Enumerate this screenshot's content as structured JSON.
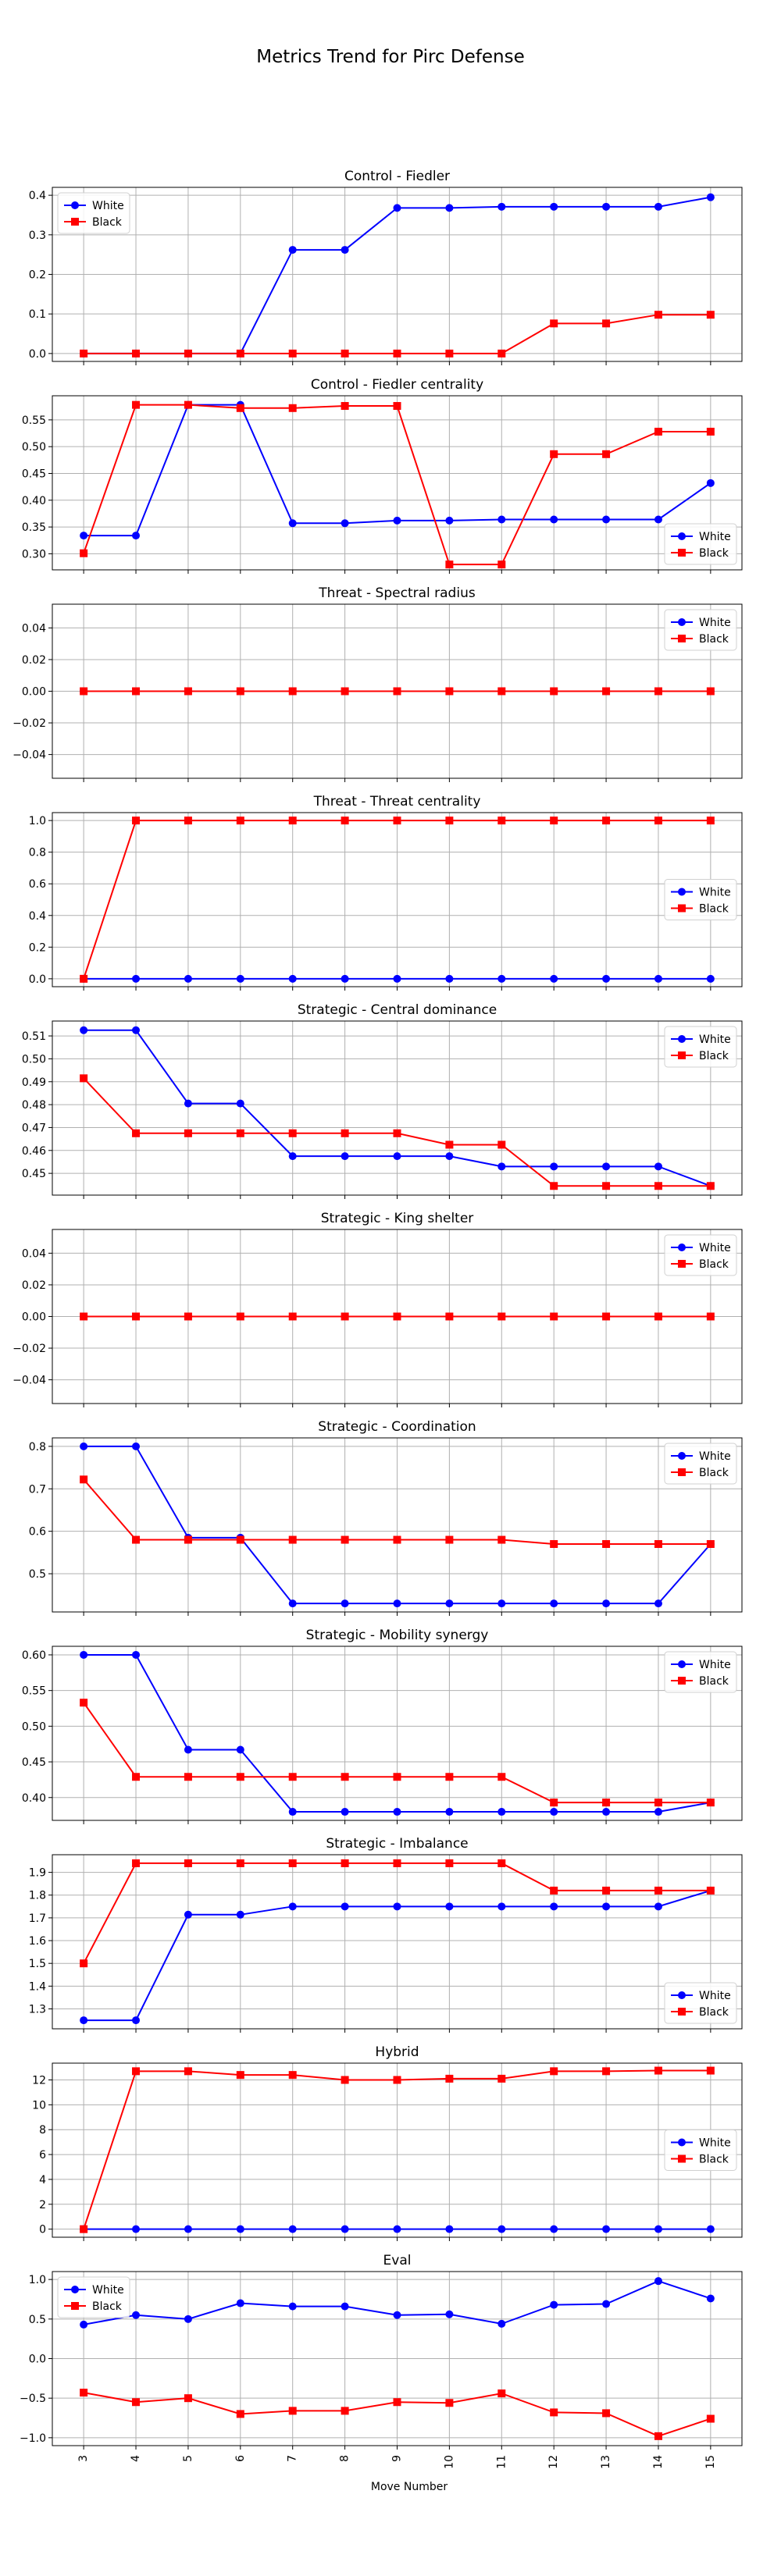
{
  "title": "Metrics Trend for Pirc Defense",
  "xlabel": "Move Number",
  "colors": {
    "White": "#0000ff",
    "Black": "#ff0000"
  },
  "chart_data": [
    {
      "type": "line",
      "title": "Control - Fiedler",
      "x": [
        3,
        4,
        5,
        6,
        7,
        8,
        9,
        10,
        11,
        12,
        13,
        14,
        15
      ],
      "ylim": [
        -0.02,
        0.42
      ],
      "yticks": [
        0.0,
        0.1,
        0.2,
        0.3,
        0.4
      ],
      "ytick_labels": [
        "0.0",
        "0.1",
        "0.2",
        "0.3",
        "0.4"
      ],
      "legend": "upper-left",
      "series": [
        {
          "name": "White",
          "marker": "circle",
          "values": [
            0,
            0,
            0,
            0,
            0.262,
            0.262,
            0.368,
            0.368,
            0.371,
            0.371,
            0.371,
            0.371,
            0.395
          ]
        },
        {
          "name": "Black",
          "marker": "square",
          "values": [
            0,
            0,
            0,
            0,
            0,
            0,
            0,
            0,
            0,
            0.076,
            0.076,
            0.098,
            0.098
          ]
        }
      ]
    },
    {
      "type": "line",
      "title": "Control - Fiedler centrality",
      "x": [
        3,
        4,
        5,
        6,
        7,
        8,
        9,
        10,
        11,
        12,
        13,
        14,
        15
      ],
      "ylim": [
        0.27,
        0.595
      ],
      "yticks": [
        0.3,
        0.35,
        0.4,
        0.45,
        0.5,
        0.55
      ],
      "ytick_labels": [
        "0.30",
        "0.35",
        "0.40",
        "0.45",
        "0.50",
        "0.55"
      ],
      "legend": "lower-right",
      "series": [
        {
          "name": "White",
          "marker": "circle",
          "values": [
            0.334,
            0.334,
            0.578,
            0.578,
            0.357,
            0.357,
            0.362,
            0.362,
            0.364,
            0.364,
            0.364,
            0.364,
            0.432
          ]
        },
        {
          "name": "Black",
          "marker": "square",
          "values": [
            0.301,
            0.578,
            0.578,
            0.572,
            0.572,
            0.576,
            0.576,
            0.28,
            0.28,
            0.486,
            0.486,
            0.528,
            0.528
          ]
        }
      ]
    },
    {
      "type": "line",
      "title": "Threat - Spectral radius",
      "x": [
        3,
        4,
        5,
        6,
        7,
        8,
        9,
        10,
        11,
        12,
        13,
        14,
        15
      ],
      "ylim": [
        -0.055,
        0.055
      ],
      "yticks": [
        -0.04,
        -0.02,
        0.0,
        0.02,
        0.04
      ],
      "ytick_labels": [
        "−0.04",
        "−0.02",
        "0.00",
        "0.02",
        "0.04"
      ],
      "legend": "upper-right",
      "series": [
        {
          "name": "White",
          "marker": "circle",
          "values": [
            0,
            0,
            0,
            0,
            0,
            0,
            0,
            0,
            0,
            0,
            0,
            0,
            0
          ]
        },
        {
          "name": "Black",
          "marker": "square",
          "values": [
            0,
            0,
            0,
            0,
            0,
            0,
            0,
            0,
            0,
            0,
            0,
            0,
            0
          ]
        }
      ]
    },
    {
      "type": "line",
      "title": "Threat - Threat centrality",
      "x": [
        3,
        4,
        5,
        6,
        7,
        8,
        9,
        10,
        11,
        12,
        13,
        14,
        15
      ],
      "ylim": [
        -0.05,
        1.05
      ],
      "yticks": [
        0.0,
        0.2,
        0.4,
        0.6,
        0.8,
        1.0
      ],
      "ytick_labels": [
        "0.0",
        "0.2",
        "0.4",
        "0.6",
        "0.8",
        "1.0"
      ],
      "legend": "center-right",
      "series": [
        {
          "name": "White",
          "marker": "circle",
          "values": [
            0,
            0,
            0,
            0,
            0,
            0,
            0,
            0,
            0,
            0,
            0,
            0,
            0
          ]
        },
        {
          "name": "Black",
          "marker": "square",
          "values": [
            0,
            1,
            1,
            1,
            1,
            1,
            1,
            1,
            1,
            1,
            1,
            1,
            1
          ]
        }
      ]
    },
    {
      "type": "line",
      "title": "Strategic - Central dominance",
      "x": [
        3,
        4,
        5,
        6,
        7,
        8,
        9,
        10,
        11,
        12,
        13,
        14,
        15
      ],
      "ylim": [
        0.4405,
        0.5165
      ],
      "yticks": [
        0.45,
        0.46,
        0.47,
        0.48,
        0.49,
        0.5,
        0.51
      ],
      "ytick_labels": [
        "0.45",
        "0.46",
        "0.47",
        "0.48",
        "0.49",
        "0.50",
        "0.51"
      ],
      "legend": "upper-right",
      "series": [
        {
          "name": "White",
          "marker": "circle",
          "values": [
            0.5125,
            0.5125,
            0.4805,
            0.4805,
            0.4575,
            0.4575,
            0.4575,
            0.4575,
            0.453,
            0.453,
            0.453,
            0.453,
            0.4445
          ]
        },
        {
          "name": "Black",
          "marker": "square",
          "values": [
            0.4915,
            0.4675,
            0.4675,
            0.4675,
            0.4675,
            0.4675,
            0.4675,
            0.4625,
            0.4625,
            0.4445,
            0.4445,
            0.4445,
            0.4445
          ]
        }
      ]
    },
    {
      "type": "line",
      "title": "Strategic - King shelter",
      "x": [
        3,
        4,
        5,
        6,
        7,
        8,
        9,
        10,
        11,
        12,
        13,
        14,
        15
      ],
      "ylim": [
        -0.055,
        0.055
      ],
      "yticks": [
        -0.04,
        -0.02,
        0.0,
        0.02,
        0.04
      ],
      "ytick_labels": [
        "−0.04",
        "−0.02",
        "0.00",
        "0.02",
        "0.04"
      ],
      "legend": "upper-right",
      "series": [
        {
          "name": "White",
          "marker": "circle",
          "values": [
            0,
            0,
            0,
            0,
            0,
            0,
            0,
            0,
            0,
            0,
            0,
            0,
            0
          ]
        },
        {
          "name": "Black",
          "marker": "square",
          "values": [
            0,
            0,
            0,
            0,
            0,
            0,
            0,
            0,
            0,
            0,
            0,
            0,
            0
          ]
        }
      ]
    },
    {
      "type": "line",
      "title": "Strategic - Coordination",
      "x": [
        3,
        4,
        5,
        6,
        7,
        8,
        9,
        10,
        11,
        12,
        13,
        14,
        15
      ],
      "ylim": [
        0.41,
        0.82
      ],
      "yticks": [
        0.5,
        0.6,
        0.7,
        0.8
      ],
      "ytick_labels": [
        "0.5",
        "0.6",
        "0.7",
        "0.8"
      ],
      "legend": "upper-right",
      "series": [
        {
          "name": "White",
          "marker": "circle",
          "values": [
            0.8,
            0.8,
            0.585,
            0.585,
            0.43,
            0.43,
            0.43,
            0.43,
            0.43,
            0.43,
            0.43,
            0.43,
            0.57
          ]
        },
        {
          "name": "Black",
          "marker": "square",
          "values": [
            0.722,
            0.58,
            0.58,
            0.58,
            0.58,
            0.58,
            0.58,
            0.58,
            0.58,
            0.57,
            0.57,
            0.57,
            0.57
          ]
        }
      ]
    },
    {
      "type": "line",
      "title": "Strategic - Mobility synergy",
      "x": [
        3,
        4,
        5,
        6,
        7,
        8,
        9,
        10,
        11,
        12,
        13,
        14,
        15
      ],
      "ylim": [
        0.368,
        0.612
      ],
      "yticks": [
        0.4,
        0.45,
        0.5,
        0.55,
        0.6
      ],
      "ytick_labels": [
        "0.40",
        "0.45",
        "0.50",
        "0.55",
        "0.60"
      ],
      "legend": "upper-right",
      "series": [
        {
          "name": "White",
          "marker": "circle",
          "values": [
            0.6,
            0.6,
            0.467,
            0.467,
            0.38,
            0.38,
            0.38,
            0.38,
            0.38,
            0.38,
            0.38,
            0.38,
            0.393
          ]
        },
        {
          "name": "Black",
          "marker": "square",
          "values": [
            0.533,
            0.429,
            0.429,
            0.429,
            0.429,
            0.429,
            0.429,
            0.429,
            0.429,
            0.393,
            0.393,
            0.393,
            0.393
          ]
        }
      ]
    },
    {
      "type": "line",
      "title": "Strategic - Imbalance",
      "x": [
        3,
        4,
        5,
        6,
        7,
        8,
        9,
        10,
        11,
        12,
        13,
        14,
        15
      ],
      "ylim": [
        1.2125,
        1.9775
      ],
      "yticks": [
        1.3,
        1.4,
        1.5,
        1.6,
        1.7,
        1.8,
        1.9
      ],
      "ytick_labels": [
        "1.3",
        "1.4",
        "1.5",
        "1.6",
        "1.7",
        "1.8",
        "1.9"
      ],
      "legend": "lower-right",
      "series": [
        {
          "name": "White",
          "marker": "circle",
          "values": [
            1.25,
            1.25,
            1.714,
            1.714,
            1.75,
            1.75,
            1.75,
            1.75,
            1.75,
            1.75,
            1.75,
            1.75,
            1.82
          ]
        },
        {
          "name": "Black",
          "marker": "square",
          "values": [
            1.5,
            1.94,
            1.94,
            1.94,
            1.94,
            1.94,
            1.94,
            1.94,
            1.94,
            1.82,
            1.82,
            1.82,
            1.82
          ]
        }
      ]
    },
    {
      "type": "line",
      "title": "Hybrid",
      "x": [
        3,
        4,
        5,
        6,
        7,
        8,
        9,
        10,
        11,
        12,
        13,
        14,
        15
      ],
      "ylim": [
        -0.65,
        13.35
      ],
      "yticks": [
        0,
        2,
        4,
        6,
        8,
        10,
        12
      ],
      "ytick_labels": [
        "0",
        "2",
        "4",
        "6",
        "8",
        "10",
        "12"
      ],
      "legend": "center-right",
      "series": [
        {
          "name": "White",
          "marker": "circle",
          "values": [
            0,
            0,
            0,
            0,
            0,
            0,
            0,
            0,
            0,
            0,
            0,
            0,
            0
          ]
        },
        {
          "name": "Black",
          "marker": "square",
          "values": [
            0,
            12.7,
            12.7,
            12.4,
            12.4,
            12.0,
            12.0,
            12.1,
            12.1,
            12.7,
            12.7,
            12.75,
            12.75
          ]
        }
      ]
    },
    {
      "type": "line",
      "title": "Eval",
      "x": [
        3,
        4,
        5,
        6,
        7,
        8,
        9,
        10,
        11,
        12,
        13,
        14,
        15
      ],
      "ylim": [
        -1.1,
        1.1
      ],
      "yticks": [
        -1.0,
        -0.5,
        0.0,
        0.5,
        1.0
      ],
      "ytick_labels": [
        "−1.0",
        "−0.5",
        "0.0",
        "0.5",
        "1.0"
      ],
      "legend": "upper-left",
      "series": [
        {
          "name": "White",
          "marker": "circle",
          "values": [
            0.43,
            0.55,
            0.5,
            0.7,
            0.66,
            0.66,
            0.55,
            0.56,
            0.44,
            0.68,
            0.69,
            0.98,
            0.76
          ]
        },
        {
          "name": "Black",
          "marker": "square",
          "values": [
            -0.43,
            -0.55,
            -0.5,
            -0.7,
            -0.66,
            -0.66,
            -0.55,
            -0.56,
            -0.44,
            -0.68,
            -0.69,
            -0.98,
            -0.76
          ]
        }
      ]
    }
  ]
}
